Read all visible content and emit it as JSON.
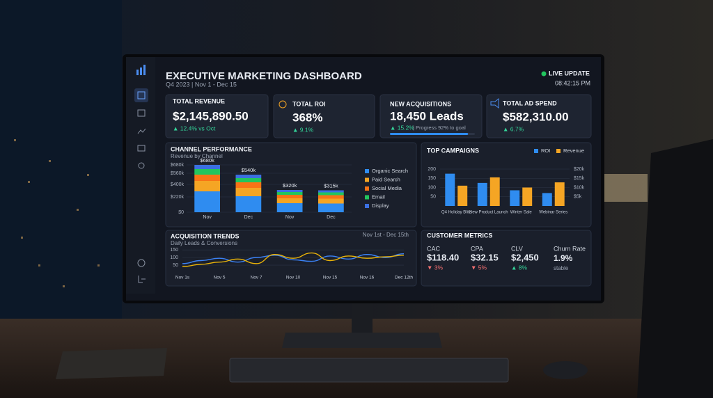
{
  "header": {
    "title": "EXECUTIVE MARKETING DASHBOARD",
    "period": "Q4 2023 | Nov 1 - Dec 15",
    "status": "LIVE UPDATE",
    "time": "08:42:15 PM"
  },
  "kpis": [
    {
      "label": "TOTAL REVENUE",
      "value": "$2,145,890.50",
      "change": "▲ 12.4% vs Oct"
    },
    {
      "label": "TOTAL ROI",
      "value": "368%",
      "change": "▲ 9.1%"
    },
    {
      "label": "NEW ACQUISITIONS",
      "value": "18,450 Leads",
      "change": "▲ 15.2%",
      "note": "| Progress 92% to goal",
      "progress": 92
    },
    {
      "label": "TOTAL AD SPEND",
      "value": "$582,310.00",
      "change": "▲ 6.7%"
    }
  ],
  "chart_data": [
    {
      "type": "bar",
      "stacked": true,
      "title": "CHANNEL PERFORMANCE",
      "subtitle": "Revenue by Channel",
      "categories": [
        "Nov",
        "Dec",
        "Nov",
        "Dec"
      ],
      "series": [
        {
          "name": "Organic Search",
          "color": "#2f8cf0",
          "values": [
            300000,
            230000,
            130000,
            125000
          ]
        },
        {
          "name": "Paid Search",
          "color": "#f5a524",
          "values": [
            150000,
            120000,
            70000,
            70000
          ]
        },
        {
          "name": "Social Media",
          "color": "#f97316",
          "values": [
            90000,
            80000,
            50000,
            50000
          ]
        },
        {
          "name": "Email",
          "color": "#22c55e",
          "values": [
            80000,
            60000,
            40000,
            40000
          ]
        },
        {
          "name": "Display",
          "color": "#3b6fe0",
          "values": [
            60000,
            50000,
            30000,
            30000
          ]
        }
      ],
      "bar_labels": [
        "$680k",
        "$540k",
        "$320k",
        "$315k"
      ],
      "ylim": [
        0,
        680000
      ],
      "yticks": [
        {
          "value": 0,
          "label": "$0"
        },
        {
          "value": 220000,
          "label": "$220k"
        },
        {
          "value": 400000,
          "label": "$400k"
        },
        {
          "value": 560000,
          "label": "$560k"
        },
        {
          "value": 680000,
          "label": "$680k"
        }
      ],
      "grid": true
    },
    {
      "type": "bar",
      "title": "TOP CAMPAIGNS",
      "categories": [
        "Q4 Holiday Blitz",
        "New Product Launch",
        "Winter Sale",
        "Webinar Series"
      ],
      "series": [
        {
          "name": "ROI",
          "color": "#2f8cf0",
          "values": [
            175,
            125,
            85,
            70
          ]
        },
        {
          "name": "Revenue",
          "color": "#f5a524",
          "axis": "y2",
          "values": [
            11000,
            15500,
            10000,
            12800
          ]
        }
      ],
      "ylim": [
        0,
        200
      ],
      "yticks": [
        50,
        100,
        150,
        200
      ],
      "y2lim": [
        0,
        20000
      ],
      "y2ticks": [
        {
          "value": 5000,
          "label": "$5k"
        },
        {
          "value": 10000,
          "label": "$10k"
        },
        {
          "value": 15000,
          "label": "$15k"
        },
        {
          "value": 20000,
          "label": "$20k"
        }
      ],
      "grid": true
    },
    {
      "type": "line",
      "title": "ACQUISITION TRENDS",
      "subtitle": "Daily Leads & Conversions",
      "date_range": "Nov 1st - Dec 15th",
      "categories": [
        "Nov 1s",
        null,
        "Nov 5",
        null,
        "Nov 7",
        null,
        "Nov 10",
        null,
        "Nov 15",
        null,
        "Nov 16",
        null,
        "Dec 12th"
      ],
      "series": [
        {
          "color": "#3b82f6",
          "values": [
            60,
            80,
            95,
            70,
            100,
            115,
            85,
            75,
            110,
            90,
            120,
            100,
            125
          ]
        },
        {
          "color": "#eab308",
          "values": [
            40,
            55,
            70,
            90,
            60,
            120,
            95,
            130,
            80,
            110,
            95,
            105,
            115
          ]
        }
      ],
      "ylim": [
        0,
        160
      ],
      "yticks": [
        50,
        100,
        150
      ],
      "grid": true
    }
  ],
  "customer_metrics": {
    "title": "CUSTOMER METRICS",
    "items": [
      {
        "label": "CAC",
        "value": "$118.40",
        "change": "▼ 3%"
      },
      {
        "label": "CPA",
        "value": "$32.15",
        "change": "▼ 5%"
      },
      {
        "label": "CLV",
        "value": "$2,450",
        "change": "▲ 8%"
      },
      {
        "label": "Churn Rate",
        "value": "1.9%",
        "change": "stable"
      }
    ]
  }
}
